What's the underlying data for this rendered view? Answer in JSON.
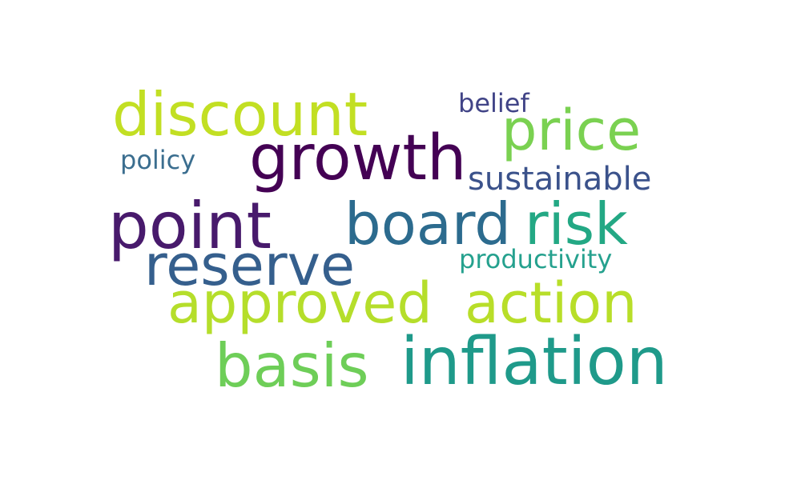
{
  "word_cloud": {
    "words": [
      {
        "key": "discount",
        "text": "discount",
        "color": "#c2df23"
      },
      {
        "key": "belief",
        "text": "belief",
        "color": "#414487"
      },
      {
        "key": "price",
        "text": "price",
        "color": "#7ad151"
      },
      {
        "key": "growth",
        "text": "growth",
        "color": "#440154"
      },
      {
        "key": "policy",
        "text": "policy",
        "color": "#3b6e8f"
      },
      {
        "key": "sustainable",
        "text": "sustainable",
        "color": "#3b528b"
      },
      {
        "key": "point",
        "text": "point",
        "color": "#481a6c"
      },
      {
        "key": "board",
        "text": "board",
        "color": "#2c6b8e"
      },
      {
        "key": "risk",
        "text": "risk",
        "color": "#23a884"
      },
      {
        "key": "reserve",
        "text": "reserve",
        "color": "#355f8d"
      },
      {
        "key": "productivity",
        "text": "productivity",
        "color": "#25a18e"
      },
      {
        "key": "approved",
        "text": "approved",
        "color": "#b5de2b"
      },
      {
        "key": "action",
        "text": "action",
        "color": "#b8de29"
      },
      {
        "key": "basis",
        "text": "basis",
        "color": "#6ece58"
      },
      {
        "key": "inflation",
        "text": "inflation",
        "color": "#1f9a8a"
      }
    ]
  }
}
